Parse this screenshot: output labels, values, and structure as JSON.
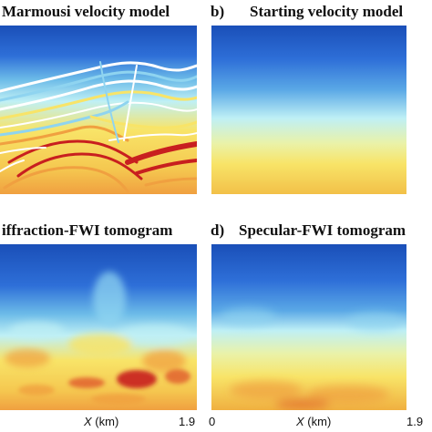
{
  "panels": [
    {
      "id": "a",
      "label": "",
      "title": "Marmousi velocity model"
    },
    {
      "id": "b",
      "label": "b)",
      "title": "Starting velocity model"
    },
    {
      "id": "c",
      "label": "",
      "title": "iffraction-FWI tomogram"
    },
    {
      "id": "d",
      "label": "d)",
      "title": "Specular-FWI tomogram"
    }
  ],
  "axis": {
    "left_xlabel_var": "X",
    "left_xlabel_unit": "(km)",
    "left_xmax": "1.9",
    "right_xmin": "0",
    "right_xlabel_var": "X",
    "right_xlabel_unit": "(km)",
    "right_xmax": "1.9"
  },
  "colors": {
    "deep_blue": "#1a4fb8",
    "blue": "#3a7fe0",
    "light_blue": "#8fd4f0",
    "cyan": "#bff0f5",
    "yellow": "#f8e468",
    "orange": "#f0a040",
    "red": "#c81f1f"
  }
}
